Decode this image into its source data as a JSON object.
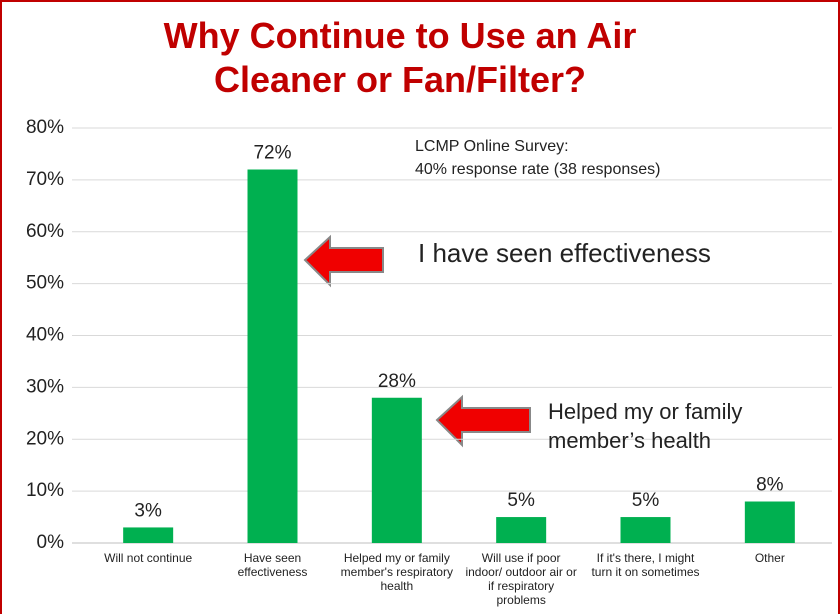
{
  "chart_data": {
    "type": "bar",
    "title": "Why Continue to Use an Air Cleaner or Fan/Filter?",
    "categories": [
      "Will not continue",
      "Have seen effectiveness",
      "Helped my or family member's respiratory health",
      "Will  use if poor indoor/ outdoor air or if respiratory problems",
      "If it's there, I might turn it on sometimes",
      "Other"
    ],
    "values": [
      3,
      72,
      28,
      5,
      5,
      8
    ],
    "value_labels": [
      "3%",
      "72%",
      "28%",
      "5%",
      "5%",
      "8%"
    ],
    "color": "#00b050",
    "ylim": [
      0,
      80
    ],
    "yticks": [
      {
        "value": 0,
        "label": "0%"
      },
      {
        "value": 10,
        "label": "10%"
      },
      {
        "value": 20,
        "label": "20%"
      },
      {
        "value": 30,
        "label": "30%"
      },
      {
        "value": 40,
        "label": "40%"
      },
      {
        "value": 50,
        "label": "50%"
      },
      {
        "value": 60,
        "label": "60%"
      },
      {
        "value": 70,
        "label": "70%"
      },
      {
        "value": 80,
        "label": "80%"
      }
    ],
    "grid": true,
    "annotations": [
      {
        "lines": [
          "LCMP Online Survey:",
          "40% response rate (38 responses)"
        ]
      },
      {
        "lines": [
          "I have seen effectiveness"
        ]
      },
      {
        "lines": [
          "Helped my or family",
          "member’s health"
        ]
      }
    ]
  }
}
